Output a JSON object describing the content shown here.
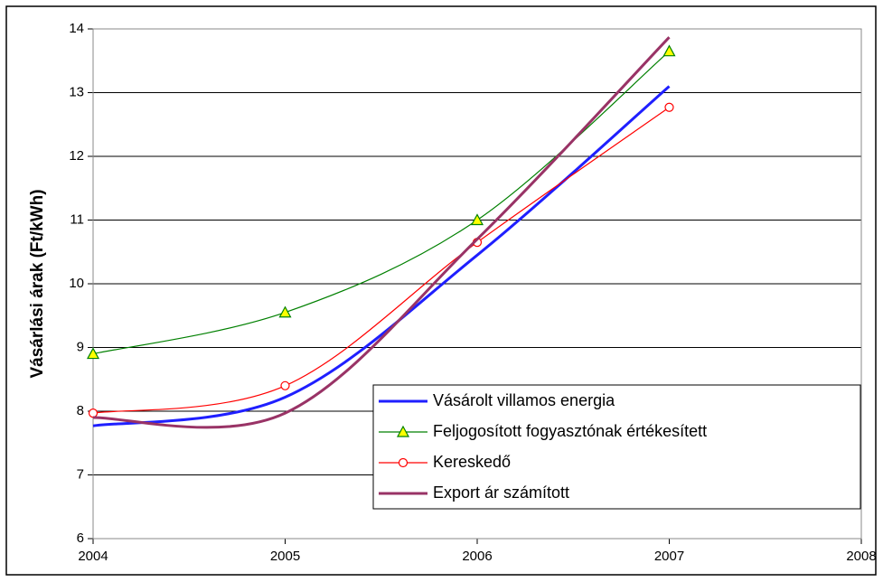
{
  "chart_data": {
    "type": "line",
    "y_label": "Vásárlási árak (Ft/kWh)",
    "x": [
      2004,
      2005,
      2006,
      2007
    ],
    "series": [
      {
        "name": "Vásárolt villamos energia",
        "color": "#1f1fff",
        "line_width": 3,
        "marker": null,
        "values": [
          7.77,
          8.22,
          10.45,
          13.1
        ]
      },
      {
        "name": "Feljogosított fogyasztónak értékesített",
        "color": "#008000",
        "line_width": 1.2,
        "marker": "triangle",
        "marker_fill": "#ffff00",
        "values": [
          8.9,
          9.55,
          11.0,
          13.65
        ]
      },
      {
        "name": "Kereskedő",
        "color": "#ff0000",
        "line_width": 1.2,
        "marker": "circle",
        "marker_fill": "#ffffff",
        "values": [
          7.97,
          8.4,
          10.65,
          12.77
        ]
      },
      {
        "name": "Export ár számított",
        "color": "#993366",
        "line_width": 3,
        "marker": null,
        "values": [
          7.9,
          7.97,
          10.7,
          13.87
        ]
      }
    ],
    "xlim": [
      2004,
      2008
    ],
    "xticks": [
      2004,
      2005,
      2006,
      2007,
      2008
    ],
    "ylim": [
      6,
      14
    ],
    "yticks": [
      6,
      7,
      8,
      9,
      10,
      11,
      12,
      13,
      14
    ],
    "grid": true,
    "smooth": true,
    "legend": "lower right"
  }
}
